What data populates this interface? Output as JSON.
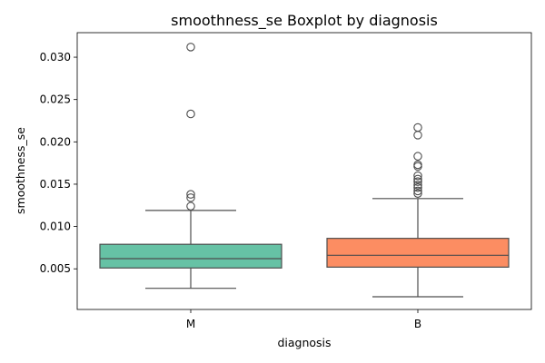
{
  "chart_data": {
    "type": "boxplot",
    "title": "smoothness_se Boxplot by diagnosis",
    "xlabel": "diagnosis",
    "ylabel": "smoothness_se",
    "ylim": [
      0.0002,
      0.0329
    ],
    "yticks": [
      0.005,
      0.01,
      0.015,
      0.02,
      0.025,
      0.03
    ],
    "ytick_labels": [
      "0.005",
      "0.010",
      "0.015",
      "0.020",
      "0.025",
      "0.030"
    ],
    "grid": false,
    "legend": "none",
    "categories": [
      "M",
      "B"
    ],
    "boxes": [
      {
        "category": "M",
        "color": "#66c2a5",
        "whisker_low": 0.0027,
        "q1": 0.0051,
        "median": 0.0062,
        "q3": 0.0079,
        "whisker_high": 0.0119,
        "outliers": [
          0.0124,
          0.0134,
          0.0138,
          0.0233,
          0.0312
        ]
      },
      {
        "category": "B",
        "color": "#fc8d62",
        "whisker_low": 0.0017,
        "q1": 0.0052,
        "median": 0.0066,
        "q3": 0.0086,
        "whisker_high": 0.0133,
        "outliers": [
          0.0139,
          0.0142,
          0.0146,
          0.0149,
          0.0153,
          0.0156,
          0.016,
          0.0171,
          0.0173,
          0.0183,
          0.0208,
          0.0217
        ]
      }
    ],
    "line_color": "#4d4d4d"
  }
}
